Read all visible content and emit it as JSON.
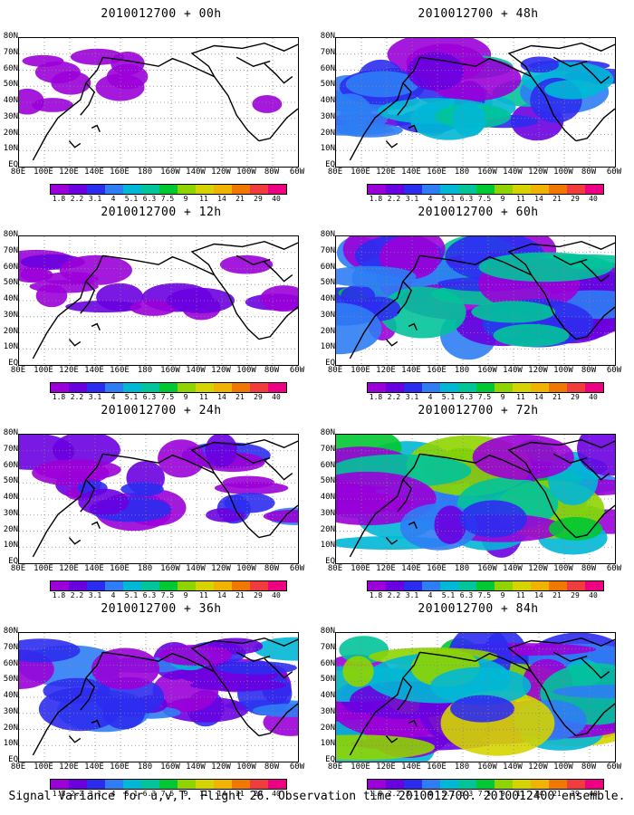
{
  "panels": [
    {
      "title": "2010012700 + 00h",
      "level": 0
    },
    {
      "title": "2010012700 + 48h",
      "level": 4
    },
    {
      "title": "2010012700 + 12h",
      "level": 1
    },
    {
      "title": "2010012700 + 60h",
      "level": 5
    },
    {
      "title": "2010012700 + 24h",
      "level": 2
    },
    {
      "title": "2010012700 + 72h",
      "level": 6
    },
    {
      "title": "2010012700 + 36h",
      "level": 3
    },
    {
      "title": "2010012700 + 84h",
      "level": 7
    }
  ],
  "y_labels": [
    "80N",
    "70N",
    "60N",
    "50N",
    "40N",
    "30N",
    "20N",
    "10N",
    "EQ"
  ],
  "x_labels": [
    "80E",
    "100E",
    "120E",
    "140E",
    "160E",
    "180",
    "160W",
    "140W",
    "120W",
    "100W",
    "80W",
    "60W"
  ],
  "colorbar": {
    "colors": [
      "#9b00d8",
      "#6a00e0",
      "#2c2cf0",
      "#2e7df5",
      "#00b8d6",
      "#00c49a",
      "#00c832",
      "#8fd400",
      "#d5d400",
      "#f0b400",
      "#f07800",
      "#f03c3c",
      "#ee0082"
    ],
    "labels": [
      "1.8",
      "2.2",
      "3.1",
      "4",
      "5.1",
      "6.3",
      "7.5",
      "9",
      "11",
      "14",
      "21",
      "29",
      "40"
    ]
  },
  "footer": "Signal Variance for u,v,T. Flight 26. Observation time 2010012700. 2010012400 ensemble."
}
